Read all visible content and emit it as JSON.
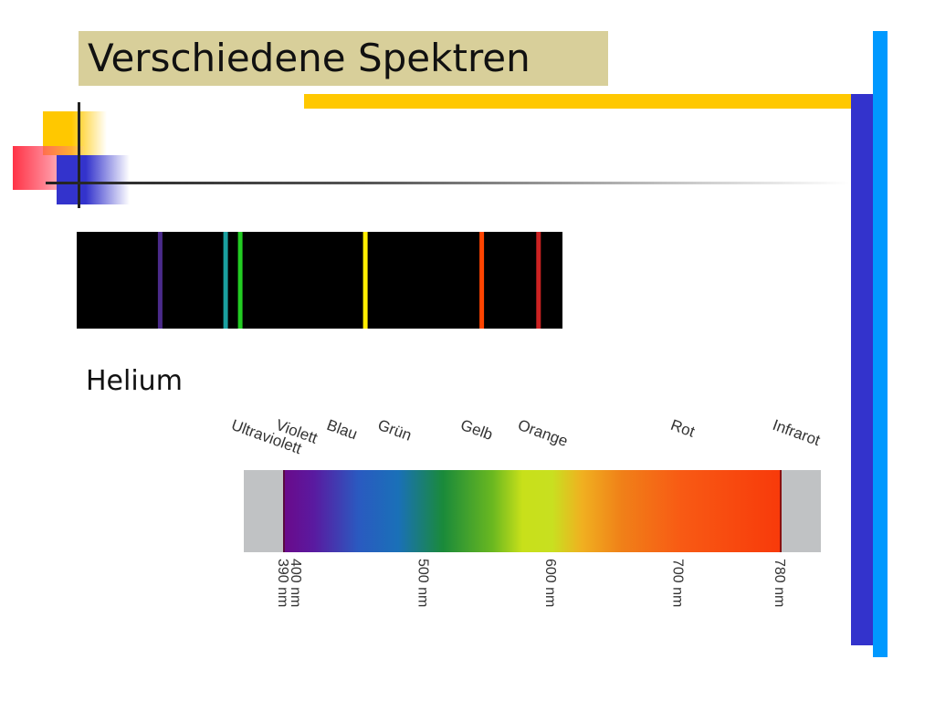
{
  "slide": {
    "title": "Verschiedene Spektren",
    "helium_label": "Helium"
  },
  "colors": {
    "title_bg": "#d8cf9a",
    "accent_yellow": "#ffc800",
    "accent_blue": "#3333cc",
    "accent_light_blue": "#0099ff"
  },
  "helium_lines": [
    {
      "wavelength_nm": 447,
      "color": "#4a2a8a"
    },
    {
      "wavelength_nm": 492,
      "color": "#1aa0a0"
    },
    {
      "wavelength_nm": 502,
      "color": "#22cc22"
    },
    {
      "wavelength_nm": 588,
      "color": "#ffee00"
    },
    {
      "wavelength_nm": 668,
      "color": "#ff4400"
    },
    {
      "wavelength_nm": 707,
      "color": "#cc2222"
    }
  ],
  "visible_spectrum": {
    "bands": [
      {
        "label": "Ultraviolett",
        "nm": 355
      },
      {
        "label": "Violett",
        "nm": 390
      },
      {
        "label": "Blau",
        "nm": 430
      },
      {
        "label": "Grün",
        "nm": 470
      },
      {
        "label": "Gelb",
        "nm": 535
      },
      {
        "label": "Orange",
        "nm": 580
      },
      {
        "label": "Rot",
        "nm": 700
      },
      {
        "label": "Infrarot",
        "nm": 780
      }
    ],
    "ticks": [
      {
        "label": "390 nm",
        "nm": 390
      },
      {
        "label": "400 nm",
        "nm": 400
      },
      {
        "label": "500 nm",
        "nm": 500
      },
      {
        "label": "600 nm",
        "nm": 600
      },
      {
        "label": "700 nm",
        "nm": 700
      },
      {
        "label": "780 nm",
        "nm": 780
      }
    ]
  }
}
